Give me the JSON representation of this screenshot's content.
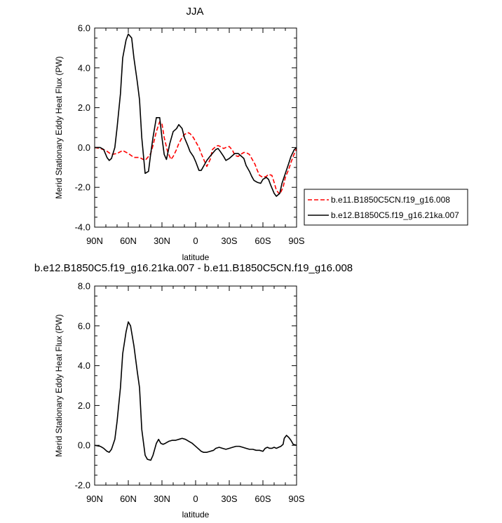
{
  "chart_data": [
    {
      "type": "line",
      "title": "JJA",
      "xlabel": "latitude",
      "ylabel": "Merid Stationary Eddy Heat Flux (PW)",
      "xlim": [
        90,
        -90
      ],
      "ylim": [
        -4,
        6
      ],
      "x_ticks": [
        90,
        60,
        30,
        0,
        -30,
        -60,
        -90
      ],
      "x_tick_labels": [
        "90N",
        "60N",
        "30N",
        "0",
        "30S",
        "60S",
        "90S"
      ],
      "y_ticks": [
        -4,
        -2,
        0,
        2,
        4,
        6
      ],
      "y_tick_labels": [
        "-4.0",
        "-2.0",
        "0.0",
        "2.0",
        "4.0",
        "6.0"
      ],
      "grid": false,
      "legend_position": "right",
      "series": [
        {
          "name": "b.e11.B1850C5CN.f19_g16.008",
          "color": "#ff0000",
          "dash": "dashed",
          "x": [
            90,
            85,
            80,
            75,
            70,
            65,
            60,
            55,
            50,
            45,
            42,
            40,
            38,
            35,
            32,
            30,
            28,
            25,
            22,
            20,
            17,
            15,
            12,
            10,
            7,
            5,
            2,
            0,
            -3,
            -5,
            -8,
            -10,
            -13,
            -15,
            -18,
            -20,
            -22,
            -25,
            -27,
            -30,
            -33,
            -35,
            -38,
            -40,
            -43,
            -45,
            -48,
            -50,
            -53,
            -55,
            -57,
            -60,
            -63,
            -65,
            -68,
            -70,
            -72,
            -75,
            -78,
            -80,
            -83,
            -85,
            -88,
            -90
          ],
          "y": [
            0.0,
            -0.05,
            -0.15,
            -0.35,
            -0.3,
            -0.15,
            -0.3,
            -0.5,
            -0.5,
            -0.65,
            -0.45,
            -0.3,
            0.1,
            0.8,
            1.3,
            1.2,
            0.5,
            -0.2,
            -0.6,
            -0.45,
            -0.1,
            0.2,
            0.5,
            0.65,
            0.75,
            0.7,
            0.5,
            0.3,
            0.0,
            -0.3,
            -0.7,
            -0.95,
            -0.6,
            -0.1,
            0.05,
            0.1,
            0.05,
            -0.05,
            0.0,
            0.05,
            -0.15,
            -0.4,
            -0.45,
            -0.35,
            -0.25,
            -0.25,
            -0.35,
            -0.55,
            -0.85,
            -1.15,
            -1.4,
            -1.5,
            -1.45,
            -1.35,
            -1.4,
            -1.75,
            -2.15,
            -2.35,
            -2.0,
            -1.5,
            -1.1,
            -0.75,
            -0.3,
            -0.05
          ]
        },
        {
          "name": "b.e12.B1850C5.f19_g16.21ka.007",
          "color": "#000000",
          "dash": "solid",
          "x": [
            90,
            85,
            82,
            79,
            77,
            75,
            72,
            70,
            67,
            65,
            62,
            60,
            57,
            55,
            52,
            50,
            48,
            45,
            42,
            40,
            38,
            35,
            32,
            30,
            28,
            26,
            23,
            20,
            17,
            15,
            12,
            10,
            7,
            5,
            2,
            0,
            -3,
            -5,
            -7,
            -10,
            -12,
            -15,
            -18,
            -20,
            -22,
            -25,
            -27,
            -30,
            -33,
            -35,
            -38,
            -40,
            -43,
            -45,
            -48,
            -50,
            -52,
            -55,
            -58,
            -60,
            -63,
            -65,
            -67,
            -70,
            -72,
            -75,
            -77,
            -80,
            -83,
            -85,
            -88,
            -90
          ],
          "y": [
            0.0,
            0.0,
            -0.1,
            -0.5,
            -0.65,
            -0.55,
            0.0,
            1.0,
            2.7,
            4.5,
            5.4,
            5.7,
            5.5,
            4.5,
            3.3,
            2.4,
            0.5,
            -1.3,
            -1.2,
            -0.3,
            0.5,
            1.5,
            1.5,
            0.5,
            -0.35,
            -0.6,
            0.2,
            0.8,
            0.95,
            1.15,
            0.95,
            0.5,
            0.1,
            -0.2,
            -0.45,
            -0.7,
            -1.15,
            -1.15,
            -0.95,
            -0.65,
            -0.5,
            -0.3,
            -0.1,
            -0.05,
            -0.2,
            -0.45,
            -0.65,
            -0.55,
            -0.4,
            -0.3,
            -0.3,
            -0.4,
            -0.55,
            -0.9,
            -1.2,
            -1.45,
            -1.65,
            -1.75,
            -1.8,
            -1.6,
            -1.5,
            -1.6,
            -1.9,
            -2.3,
            -2.45,
            -2.3,
            -1.8,
            -1.3,
            -0.8,
            -0.45,
            -0.1,
            0.0
          ]
        }
      ]
    },
    {
      "type": "line",
      "title": "b.e12.B1850C5.f19_g16.21ka.007 - b.e11.B1850C5CN.f19_g16.008",
      "xlabel": "latitude",
      "ylabel": "Merid Stationary Eddy Heat Flux (PW)",
      "xlim": [
        90,
        -90
      ],
      "ylim": [
        -2,
        8
      ],
      "x_ticks": [
        90,
        60,
        30,
        0,
        -30,
        -60,
        -90
      ],
      "x_tick_labels": [
        "90N",
        "60N",
        "30N",
        "0",
        "30S",
        "60S",
        "90S"
      ],
      "y_ticks": [
        -2,
        0,
        2,
        4,
        6,
        8
      ],
      "y_tick_labels": [
        "-2.0",
        "0.0",
        "2.0",
        "4.0",
        "6.0",
        "8.0"
      ],
      "grid": false,
      "series": [
        {
          "color": "#000000",
          "dash": "solid",
          "x": [
            90,
            85,
            82,
            79,
            77,
            75,
            72,
            70,
            67,
            65,
            62,
            60,
            58,
            55,
            52,
            50,
            48,
            45,
            43,
            40,
            38,
            35,
            33,
            31,
            29,
            27,
            24,
            21,
            18,
            15,
            12,
            9,
            6,
            3,
            1,
            -2,
            -5,
            -7,
            -10,
            -13,
            -16,
            -18,
            -21,
            -24,
            -27,
            -30,
            -33,
            -36,
            -39,
            -42,
            -45,
            -48,
            -51,
            -54,
            -57,
            -60,
            -62,
            -64,
            -66,
            -68,
            -70,
            -72,
            -74,
            -76,
            -78,
            -79,
            -81,
            -83,
            -85,
            -87,
            -90
          ],
          "y": [
            0.0,
            -0.05,
            -0.15,
            -0.3,
            -0.35,
            -0.2,
            0.3,
            1.2,
            2.9,
            4.6,
            5.7,
            6.2,
            6.0,
            5.0,
            3.7,
            2.9,
            0.8,
            -0.5,
            -0.7,
            -0.75,
            -0.5,
            0.1,
            0.3,
            0.1,
            0.05,
            0.1,
            0.2,
            0.25,
            0.25,
            0.3,
            0.35,
            0.3,
            0.2,
            0.1,
            0.0,
            -0.15,
            -0.3,
            -0.35,
            -0.35,
            -0.3,
            -0.25,
            -0.15,
            -0.1,
            -0.15,
            -0.2,
            -0.15,
            -0.1,
            -0.05,
            -0.05,
            -0.1,
            -0.15,
            -0.2,
            -0.2,
            -0.25,
            -0.25,
            -0.3,
            -0.15,
            -0.1,
            -0.15,
            -0.15,
            -0.1,
            -0.15,
            -0.1,
            -0.05,
            0.05,
            0.35,
            0.5,
            0.4,
            0.25,
            0.05,
            0.0
          ]
        }
      ]
    }
  ]
}
